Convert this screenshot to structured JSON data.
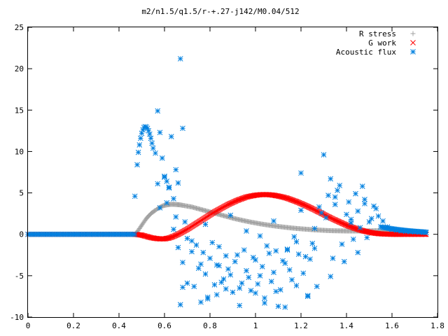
{
  "chart_data": {
    "type": "scatter",
    "title": "m2/n1.5/q1.5/r-+.27-j142/M0.04/512",
    "xlabel": "",
    "ylabel": "",
    "xlim": [
      0,
      1.8
    ],
    "ylim": [
      -10,
      25
    ],
    "x_ticks": [
      "0",
      "0.2",
      "0.4",
      "0.6",
      "0.8",
      "1",
      "1.2",
      "1.4",
      "1.6",
      "1.8"
    ],
    "y_ticks": [
      "-10",
      "-5",
      "0",
      "5",
      "10",
      "15",
      "20",
      "25"
    ],
    "grid": false,
    "legend_position": "top-right",
    "series": [
      {
        "name": "R stress",
        "marker": "plus",
        "color": "#a0a0a0",
        "x": [
          0.0,
          0.1,
          0.2,
          0.3,
          0.4,
          0.47,
          0.48,
          0.49,
          0.5,
          0.51,
          0.52,
          0.53,
          0.54,
          0.55,
          0.56,
          0.57,
          0.58,
          0.59,
          0.6,
          0.61,
          0.62,
          0.63,
          0.64,
          0.65,
          0.66,
          0.67,
          0.68,
          0.7,
          0.72,
          0.74,
          0.76,
          0.78,
          0.8,
          0.82,
          0.84,
          0.86,
          0.88,
          0.9,
          0.92,
          0.94,
          0.96,
          0.98,
          1.0,
          1.02,
          1.04,
          1.06,
          1.08,
          1.1,
          1.12,
          1.14,
          1.16,
          1.18,
          1.2,
          1.22,
          1.24,
          1.26,
          1.28,
          1.3,
          1.32,
          1.34,
          1.36,
          1.38,
          1.4,
          1.42,
          1.44,
          1.46,
          1.48,
          1.5,
          1.52,
          1.54,
          1.56,
          1.58,
          1.6,
          1.62,
          1.64,
          1.66,
          1.68,
          1.7,
          1.72,
          1.74,
          1.75
        ],
        "y": [
          0,
          0,
          0,
          0,
          0,
          0,
          0.3,
          0.7,
          1.1,
          1.5,
          1.9,
          2.2,
          2.5,
          2.7,
          2.9,
          3.1,
          3.25,
          3.4,
          3.5,
          3.55,
          3.6,
          3.62,
          3.62,
          3.6,
          3.58,
          3.55,
          3.5,
          3.4,
          3.3,
          3.15,
          3.0,
          2.85,
          2.7,
          2.55,
          2.4,
          2.25,
          2.1,
          1.95,
          1.82,
          1.7,
          1.58,
          1.47,
          1.37,
          1.27,
          1.18,
          1.1,
          1.02,
          0.95,
          0.88,
          0.82,
          0.76,
          0.71,
          0.66,
          0.62,
          0.58,
          0.54,
          0.51,
          0.48,
          0.45,
          0.43,
          0.42,
          0.41,
          0.4,
          0.4,
          0.4,
          0.4,
          0.41,
          0.42,
          0.43,
          0.44,
          0.44,
          0.43,
          0.42,
          0.4,
          0.38,
          0.35,
          0.32,
          0.28,
          0.24,
          0.2,
          0.18
        ]
      },
      {
        "name": "G work",
        "marker": "cross",
        "color": "#ff0000",
        "x": [
          0.0,
          0.1,
          0.2,
          0.3,
          0.4,
          0.47,
          0.5,
          0.52,
          0.54,
          0.56,
          0.58,
          0.6,
          0.62,
          0.64,
          0.66,
          0.68,
          0.7,
          0.72,
          0.74,
          0.76,
          0.78,
          0.8,
          0.82,
          0.84,
          0.86,
          0.88,
          0.9,
          0.92,
          0.94,
          0.96,
          0.98,
          1.0,
          1.02,
          1.04,
          1.06,
          1.08,
          1.1,
          1.12,
          1.14,
          1.16,
          1.18,
          1.2,
          1.22,
          1.24,
          1.26,
          1.28,
          1.3,
          1.32,
          1.34,
          1.36,
          1.38,
          1.4,
          1.42,
          1.44,
          1.46,
          1.48,
          1.5,
          1.52,
          1.54,
          1.56,
          1.58,
          1.6,
          1.65,
          1.7,
          1.75
        ],
        "y": [
          0,
          0,
          0,
          0,
          0,
          0,
          -0.1,
          -0.25,
          -0.4,
          -0.5,
          -0.55,
          -0.55,
          -0.45,
          -0.25,
          0,
          0.3,
          0.6,
          0.95,
          1.3,
          1.65,
          2.0,
          2.35,
          2.7,
          3.0,
          3.3,
          3.6,
          3.85,
          4.1,
          4.3,
          4.5,
          4.62,
          4.72,
          4.78,
          4.8,
          4.78,
          4.72,
          4.62,
          4.5,
          4.35,
          4.15,
          3.95,
          3.72,
          3.48,
          3.22,
          2.95,
          2.68,
          2.4,
          2.12,
          1.85,
          1.6,
          1.35,
          1.1,
          0.9,
          0.7,
          0.52,
          0.37,
          0.25,
          0.15,
          0.08,
          0.04,
          0.02,
          0,
          0,
          0,
          0
        ]
      },
      {
        "name": "Acoustic flux",
        "marker": "star",
        "color": "#0080e0",
        "x": [
          0.0,
          0.1,
          0.2,
          0.3,
          0.4,
          0.47,
          0.48,
          0.485,
          0.49,
          0.495,
          0.5,
          0.505,
          0.51,
          0.515,
          0.52,
          0.525,
          0.53,
          0.535,
          0.54,
          0.545,
          0.55,
          0.56,
          0.57,
          0.58,
          0.59,
          0.6,
          0.61,
          0.62,
          0.63,
          0.64,
          0.65,
          0.66,
          0.67,
          0.68,
          0.69,
          0.7,
          0.72,
          0.74,
          0.76,
          0.78,
          0.8,
          0.82,
          0.84,
          0.86,
          0.88,
          0.9,
          0.92,
          0.94,
          0.96,
          0.98,
          1.0,
          1.02,
          1.04,
          1.06,
          1.08,
          1.1,
          1.12,
          1.14,
          1.16,
          1.18,
          1.2,
          1.22,
          1.23,
          1.25,
          1.28,
          1.3,
          1.31,
          1.33,
          1.35,
          1.37,
          1.4,
          1.42,
          1.44,
          1.46,
          1.48,
          1.5,
          1.52,
          1.54,
          1.56,
          1.58,
          1.6,
          1.62,
          1.64,
          1.66,
          1.68,
          1.7,
          1.72,
          1.74,
          1.75,
          0.58,
          0.6,
          0.62,
          0.64,
          0.66,
          0.68,
          0.7,
          0.73,
          0.75,
          0.77,
          0.79,
          0.81,
          0.83,
          0.85,
          0.87,
          0.89,
          0.91,
          0.93,
          0.95,
          0.97,
          0.99,
          1.01,
          1.03,
          1.05,
          1.07,
          1.09,
          1.11,
          1.13,
          1.15,
          1.17,
          1.19,
          1.21,
          1.24,
          1.26,
          1.29,
          1.32,
          1.34,
          1.36,
          1.38,
          1.41,
          1.43,
          1.45,
          1.47,
          1.49,
          1.51,
          1.53,
          0.67,
          0.68,
          0.76,
          0.79,
          0.83,
          0.87,
          0.93,
          1.0,
          1.04,
          1.09,
          1.13,
          1.18,
          1.23,
          1.27,
          1.33,
          1.39,
          1.45,
          0.57,
          0.61,
          0.65,
          0.72,
          0.78,
          0.84,
          0.89,
          0.96,
          1.02,
          1.08,
          1.14,
          1.2,
          1.26,
          1.35,
          1.42,
          1.48
        ],
        "y": [
          0,
          0,
          0,
          0,
          0,
          4.6,
          8.4,
          9.9,
          10.8,
          11.6,
          12.2,
          12.6,
          12.9,
          13.0,
          12.95,
          12.8,
          12.5,
          12.1,
          11.6,
          11.0,
          10.4,
          9.8,
          14.9,
          12.3,
          9.2,
          7.0,
          6.4,
          5.7,
          11.8,
          4.3,
          2.1,
          6.2,
          21.2,
          12.8,
          1.5,
          -0.5,
          -2.1,
          -1.3,
          -3.6,
          -4.8,
          -2.9,
          -6.1,
          -3.8,
          -5.4,
          -4.2,
          -7.0,
          -2.5,
          -5.9,
          -4.4,
          -6.8,
          -3.1,
          -5.0,
          -7.7,
          -2.3,
          -4.6,
          -8.7,
          -3.2,
          -1.8,
          -5.5,
          -0.9,
          7.4,
          -2.7,
          -7.5,
          -1.1,
          3.3,
          9.6,
          2.0,
          6.7,
          4.5,
          5.9,
          2.4,
          1.8,
          4.9,
          0.8,
          3.7,
          1.5,
          3.4,
          2.2,
          1.6,
          0.9,
          0.6,
          0.5,
          0.4,
          0.35,
          0.3,
          0.28,
          0.25,
          0.22,
          0.2,
          3.2,
          6.9,
          5.6,
          0.6,
          -1.6,
          -3.4,
          -5.9,
          -6.3,
          -4.1,
          -2.2,
          -7.6,
          -1.0,
          -3.7,
          -5.8,
          -2.6,
          -4.9,
          -3.3,
          -6.5,
          -1.9,
          -5.2,
          -2.8,
          -6.0,
          -3.9,
          -1.4,
          -5.7,
          -2.0,
          -6.7,
          -3.5,
          -4.3,
          -0.3,
          -2.4,
          -4.7,
          -3.0,
          -1.7,
          2.6,
          4.7,
          -2.9,
          5.3,
          -1.2,
          3.9,
          -0.6,
          2.8,
          5.8,
          -0.4,
          1.9,
          3.1,
          -8.5,
          -6.4,
          -8.2,
          -7.8,
          -7.3,
          -6.6,
          -8.6,
          -7.1,
          -8.3,
          -6.9,
          -8.8,
          -6.2,
          -7.4,
          -6.3,
          -5.1,
          -3.3,
          -2.2,
          6.1,
          3.8,
          7.8,
          -0.8,
          1.2,
          -1.5,
          2.3,
          0.4,
          -0.2,
          1.6,
          -1.9,
          2.9,
          0.7,
          3.6,
          1.4,
          4.2
        ]
      }
    ]
  }
}
